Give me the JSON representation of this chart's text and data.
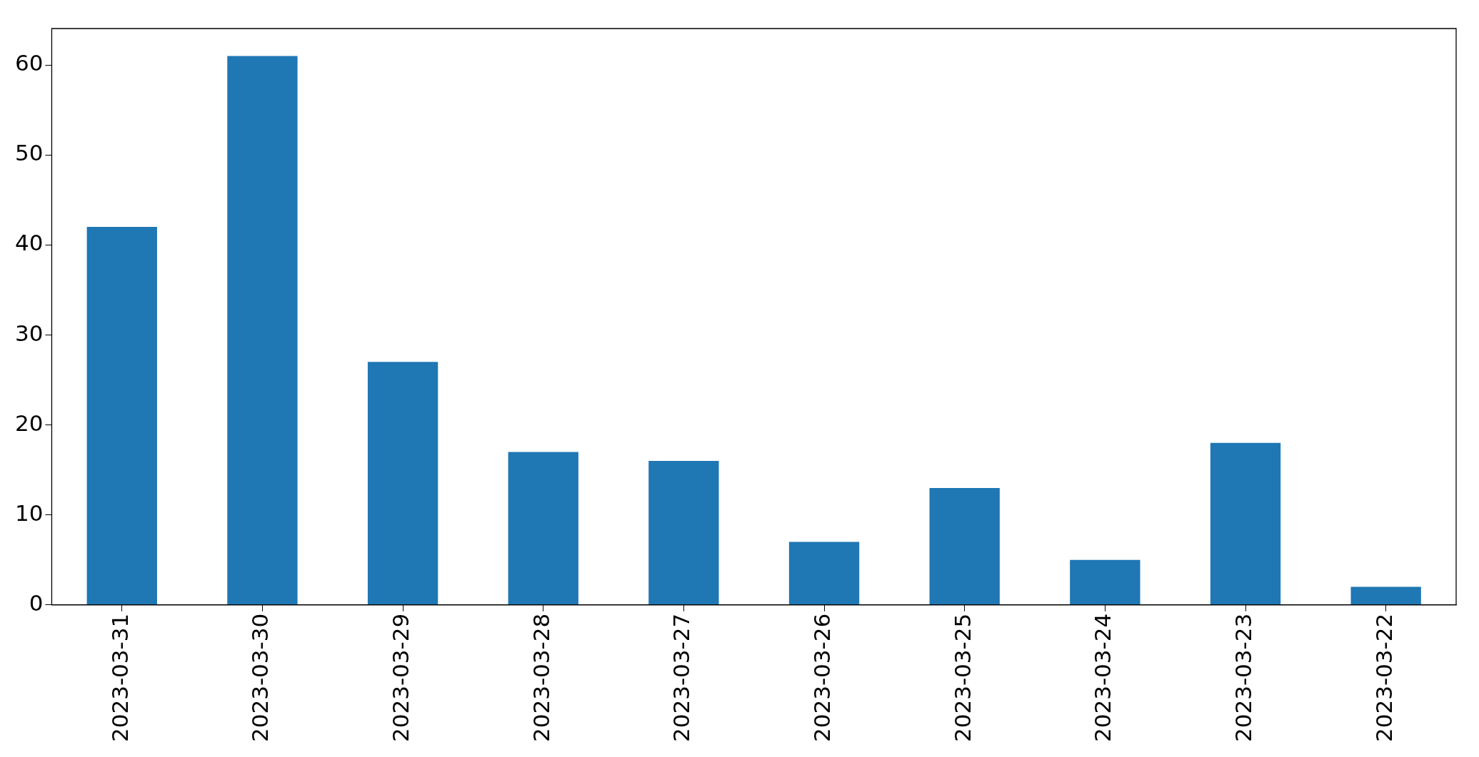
{
  "chart_data": {
    "type": "bar",
    "categories": [
      "2023-03-31",
      "2023-03-30",
      "2023-03-29",
      "2023-03-28",
      "2023-03-27",
      "2023-03-26",
      "2023-03-25",
      "2023-03-24",
      "2023-03-23",
      "2023-03-22"
    ],
    "values": [
      42,
      61,
      27,
      17,
      16,
      7,
      13,
      5,
      18,
      2
    ],
    "color": "#1f77b4",
    "ylim": [
      0,
      64.05
    ],
    "yticks": [
      0,
      10,
      20,
      30,
      40,
      50,
      60
    ],
    "grid": false,
    "legend": false
  }
}
